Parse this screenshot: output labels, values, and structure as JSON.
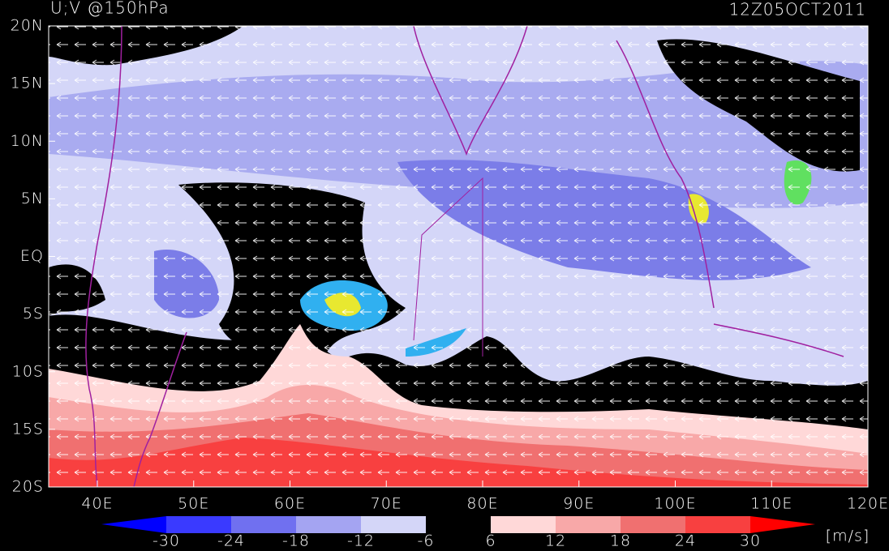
{
  "header": {
    "title": "U;V @150hPa",
    "time": "12Z05OCT2011"
  },
  "map": {
    "lat_labels": [
      "20N",
      "15N",
      "10N",
      "5N",
      "EQ",
      "5S",
      "10S",
      "15S",
      "20S"
    ],
    "lon_labels": [
      "40E",
      "50E",
      "60E",
      "70E",
      "80E",
      "90E",
      "100E",
      "110E",
      "120E"
    ]
  },
  "colorbar": {
    "labels": [
      "-30",
      "-24",
      "-18",
      "-12",
      "-6",
      "6",
      "12",
      "18",
      "24",
      "30"
    ],
    "unit": "[m/s]"
  }
}
